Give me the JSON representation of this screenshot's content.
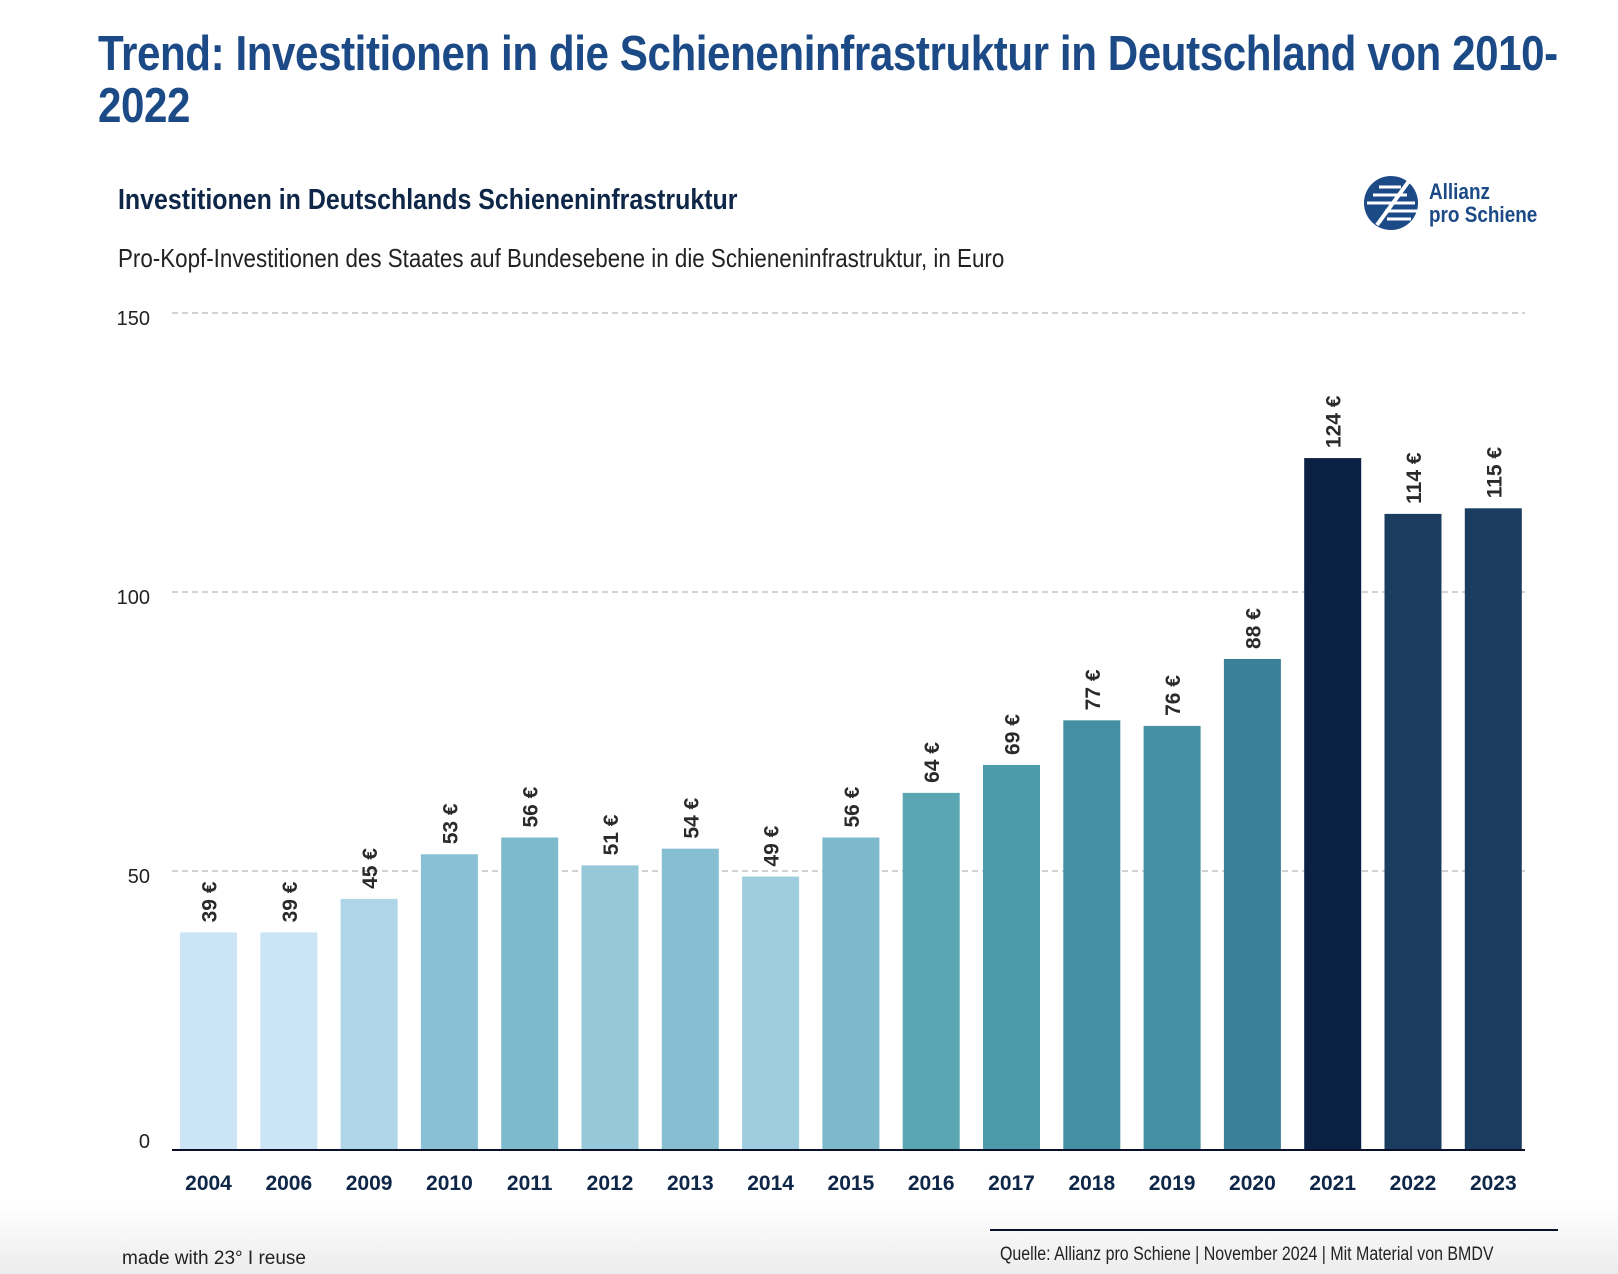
{
  "title": "Trend: Investitionen in die Schieneninfrastruktur in Deutschland von 2010-2022",
  "logo": {
    "line1": "Allianz",
    "line2": "pro Schiene",
    "color": "#1c4a86"
  },
  "footer": {
    "made_with": "made with 23° I reuse",
    "source": "Quelle: Allianz pro Schiene | November 2024 | Mit Material von BMDV"
  },
  "chart_data": {
    "type": "bar",
    "title": "Investitionen in Deutschlands Schieneninfrastruktur",
    "subtitle": "Pro-Kopf-Investitionen des Staates auf Bundesebene in die Schieneninfrastruktur, in Euro",
    "xlabel": "",
    "ylabel": "",
    "ylim": [
      0,
      150
    ],
    "yticks": [
      0,
      50,
      100,
      150
    ],
    "grid": true,
    "value_suffix": " €",
    "categories": [
      "2004",
      "2006",
      "2009",
      "2010",
      "2011",
      "2012",
      "2013",
      "2014",
      "2015",
      "2016",
      "2017",
      "2018",
      "2019",
      "2020",
      "2021",
      "2022",
      "2023"
    ],
    "values": [
      39,
      39,
      45,
      53,
      56,
      51,
      54,
      49,
      56,
      64,
      69,
      77,
      76,
      88,
      124,
      114,
      115
    ],
    "colors": [
      "#cbe5f7",
      "#cbe5f7",
      "#aed6e8",
      "#89c0d3",
      "#7dbacb",
      "#96c8d9",
      "#86bfd1",
      "#9ecde0",
      "#7db9cb",
      "#5ba6b3",
      "#4d9aab",
      "#448fa2",
      "#4690a3",
      "#3b8099",
      "#0a2144",
      "#1a3c5e",
      "#1a3c5e"
    ]
  }
}
